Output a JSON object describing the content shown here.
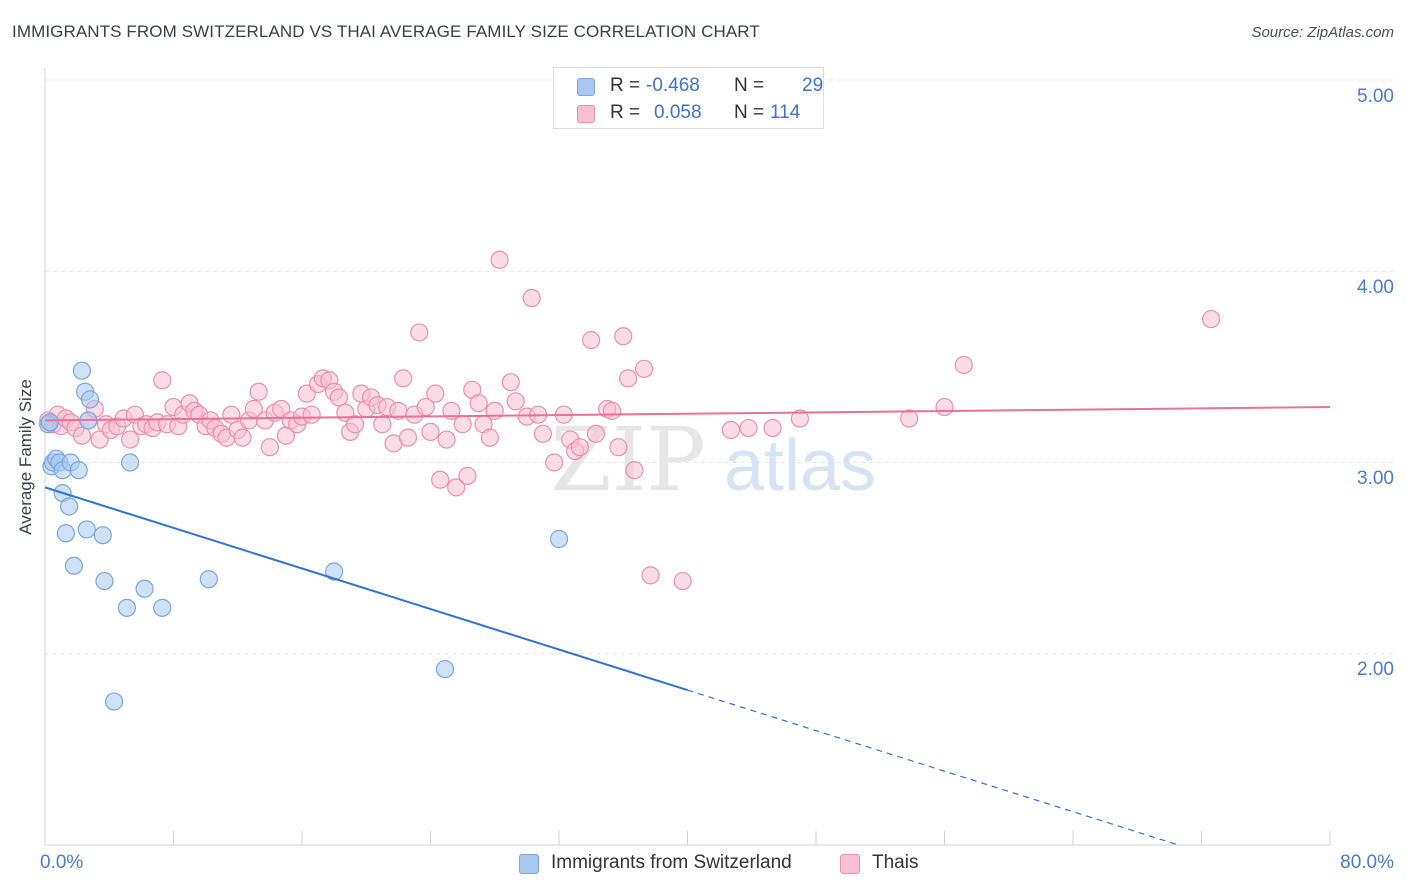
{
  "header": {
    "title": "IMMIGRANTS FROM SWITZERLAND VS THAI AVERAGE FAMILY SIZE CORRELATION CHART",
    "source": "Source: ZipAtlas.com"
  },
  "watermark": {
    "zip": "ZIP",
    "atlas": "atlas"
  },
  "legend_top": {
    "rows": [
      {
        "r_label": "R =",
        "r_value": "-0.468",
        "n_label": "N =",
        "n_value": "29",
        "color": "#a8c8f0"
      },
      {
        "r_label": "R =",
        "r_value": "0.058",
        "n_label": "N =",
        "n_value": "114",
        "color": "#f4b8cc"
      }
    ]
  },
  "legend_bottom": {
    "series1": "Immigrants from Switzerland",
    "series2": "Thais"
  },
  "colors": {
    "blue_fill": "#a8c8f0",
    "blue_stroke": "#7aa6dd",
    "blue_line": "#2f74d0",
    "pink_fill": "#f6c0d2",
    "pink_stroke": "#eb8fae",
    "pink_line": "#e8709a",
    "grid": "#e3e5e8",
    "axis_text": "#4a7cc9"
  },
  "chart_data": {
    "type": "scatter",
    "title": "IMMIGRANTS FROM SWITZERLAND VS THAI AVERAGE FAMILY SIZE CORRELATION CHART",
    "xlabel": "",
    "ylabel": "Average Family Size",
    "xlim": [
      0,
      80
    ],
    "ylim": [
      1.0,
      5.0
    ],
    "x_tick_labels": [
      "0.0%",
      "80.0%"
    ],
    "y_tick_labels": [
      "2.00",
      "3.00",
      "4.00",
      "5.00"
    ],
    "y_ticks": [
      2.0,
      3.0,
      4.0,
      5.0
    ],
    "grid": true,
    "series": [
      {
        "name": "Immigrants from Switzerland",
        "R": -0.468,
        "N": 29,
        "points": [
          [
            0.2,
            3.2
          ],
          [
            0.4,
            2.98
          ],
          [
            0.5,
            3.0
          ],
          [
            0.7,
            3.02
          ],
          [
            0.9,
            3.0
          ],
          [
            1.1,
            2.96
          ],
          [
            1.1,
            2.84
          ],
          [
            1.3,
            2.63
          ],
          [
            1.5,
            2.77
          ],
          [
            1.6,
            3.0
          ],
          [
            1.8,
            2.46
          ],
          [
            2.1,
            2.96
          ],
          [
            2.3,
            3.48
          ],
          [
            2.5,
            3.37
          ],
          [
            2.6,
            2.65
          ],
          [
            2.7,
            3.22
          ],
          [
            2.8,
            3.33
          ],
          [
            3.6,
            2.62
          ],
          [
            3.7,
            2.38
          ],
          [
            4.3,
            1.75
          ],
          [
            5.1,
            2.24
          ],
          [
            5.3,
            3.0
          ],
          [
            6.2,
            2.34
          ],
          [
            7.3,
            2.24
          ],
          [
            10.2,
            2.39
          ],
          [
            18.0,
            2.43
          ],
          [
            24.9,
            1.92
          ],
          [
            32.0,
            2.6
          ],
          [
            0.3,
            3.21
          ]
        ],
        "trend_solid": [
          [
            0.0,
            2.87
          ],
          [
            40.0,
            1.81
          ]
        ],
        "trend_dashed": [
          [
            40.0,
            1.81
          ],
          [
            80.0,
            0.75
          ]
        ]
      },
      {
        "name": "Thais",
        "R": 0.058,
        "N": 114,
        "points": [
          [
            0.2,
            3.22
          ],
          [
            0.5,
            3.2
          ],
          [
            0.8,
            3.25
          ],
          [
            1.0,
            3.19
          ],
          [
            1.3,
            3.23
          ],
          [
            1.6,
            3.21
          ],
          [
            1.9,
            3.18
          ],
          [
            2.3,
            3.14
          ],
          [
            2.7,
            3.22
          ],
          [
            3.1,
            3.28
          ],
          [
            3.4,
            3.12
          ],
          [
            3.8,
            3.2
          ],
          [
            4.1,
            3.17
          ],
          [
            4.5,
            3.19
          ],
          [
            4.9,
            3.23
          ],
          [
            5.3,
            3.12
          ],
          [
            5.6,
            3.25
          ],
          [
            6.0,
            3.19
          ],
          [
            6.3,
            3.2
          ],
          [
            6.7,
            3.18
          ],
          [
            7.0,
            3.21
          ],
          [
            7.3,
            3.43
          ],
          [
            7.6,
            3.2
          ],
          [
            8.0,
            3.29
          ],
          [
            8.3,
            3.19
          ],
          [
            8.6,
            3.25
          ],
          [
            9.0,
            3.31
          ],
          [
            9.3,
            3.27
          ],
          [
            9.6,
            3.25
          ],
          [
            10.0,
            3.19
          ],
          [
            10.3,
            3.22
          ],
          [
            10.6,
            3.18
          ],
          [
            11.0,
            3.15
          ],
          [
            11.3,
            3.13
          ],
          [
            11.6,
            3.25
          ],
          [
            12.0,
            3.17
          ],
          [
            12.3,
            3.13
          ],
          [
            12.7,
            3.22
          ],
          [
            13.0,
            3.28
          ],
          [
            13.3,
            3.37
          ],
          [
            13.7,
            3.22
          ],
          [
            14.0,
            3.08
          ],
          [
            14.3,
            3.26
          ],
          [
            14.7,
            3.28
          ],
          [
            15.0,
            3.14
          ],
          [
            15.3,
            3.22
          ],
          [
            15.7,
            3.2
          ],
          [
            16.0,
            3.24
          ],
          [
            16.3,
            3.36
          ],
          [
            16.6,
            3.25
          ],
          [
            17.0,
            3.41
          ],
          [
            17.3,
            3.44
          ],
          [
            17.7,
            3.43
          ],
          [
            18.0,
            3.37
          ],
          [
            18.3,
            3.34
          ],
          [
            18.7,
            3.26
          ],
          [
            19.0,
            3.16
          ],
          [
            19.3,
            3.2
          ],
          [
            19.7,
            3.36
          ],
          [
            20.0,
            3.28
          ],
          [
            20.3,
            3.34
          ],
          [
            20.7,
            3.3
          ],
          [
            21.0,
            3.2
          ],
          [
            21.3,
            3.29
          ],
          [
            21.7,
            3.1
          ],
          [
            22.0,
            3.27
          ],
          [
            22.3,
            3.44
          ],
          [
            22.6,
            3.13
          ],
          [
            23.0,
            3.25
          ],
          [
            23.3,
            3.68
          ],
          [
            23.7,
            3.29
          ],
          [
            24.0,
            3.16
          ],
          [
            24.3,
            3.36
          ],
          [
            24.6,
            2.91
          ],
          [
            25.0,
            3.12
          ],
          [
            25.3,
            3.27
          ],
          [
            25.6,
            2.87
          ],
          [
            26.0,
            3.2
          ],
          [
            26.3,
            2.93
          ],
          [
            26.6,
            3.38
          ],
          [
            27.0,
            3.31
          ],
          [
            27.3,
            3.2
          ],
          [
            27.7,
            3.13
          ],
          [
            28.0,
            3.27
          ],
          [
            28.3,
            4.06
          ],
          [
            29.0,
            3.42
          ],
          [
            29.3,
            3.32
          ],
          [
            30.0,
            3.24
          ],
          [
            30.3,
            3.86
          ],
          [
            30.7,
            3.25
          ],
          [
            31.0,
            3.15
          ],
          [
            31.7,
            3.0
          ],
          [
            32.3,
            3.25
          ],
          [
            32.7,
            3.12
          ],
          [
            33.0,
            3.06
          ],
          [
            33.3,
            3.08
          ],
          [
            34.0,
            3.64
          ],
          [
            34.3,
            3.15
          ],
          [
            35.0,
            3.28
          ],
          [
            35.3,
            3.27
          ],
          [
            35.7,
            3.08
          ],
          [
            36.0,
            3.66
          ],
          [
            36.3,
            3.44
          ],
          [
            36.7,
            2.96
          ],
          [
            37.3,
            3.49
          ],
          [
            37.7,
            2.41
          ],
          [
            39.7,
            2.38
          ],
          [
            42.7,
            3.17
          ],
          [
            43.8,
            3.18
          ],
          [
            45.3,
            3.18
          ],
          [
            47.0,
            3.23
          ],
          [
            53.8,
            3.23
          ],
          [
            56.0,
            3.29
          ],
          [
            57.2,
            3.51
          ],
          [
            72.6,
            3.75
          ]
        ],
        "trend_solid": [
          [
            0.0,
            3.22
          ],
          [
            80.0,
            3.29
          ]
        ]
      }
    ]
  }
}
